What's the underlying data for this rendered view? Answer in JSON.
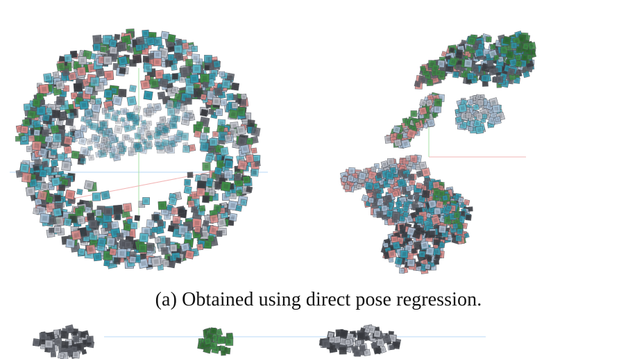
{
  "figure": {
    "caption": "(a) Obtained using direct pose regression.",
    "colors": {
      "pink": "#d98a88",
      "teal": "#2f97ad",
      "cyan": "#5bb7c9",
      "lightblue": "#a8bfd6",
      "green": "#3d8b45",
      "darkgreen": "#2d6e2f",
      "gray": "#5e6169",
      "darkgray": "#393b40",
      "silver": "#b9bcc4",
      "axis_red": "#f2b4b4",
      "axis_green": "#a7e0a7",
      "axis_blue": "#b8d8f7"
    }
  }
}
